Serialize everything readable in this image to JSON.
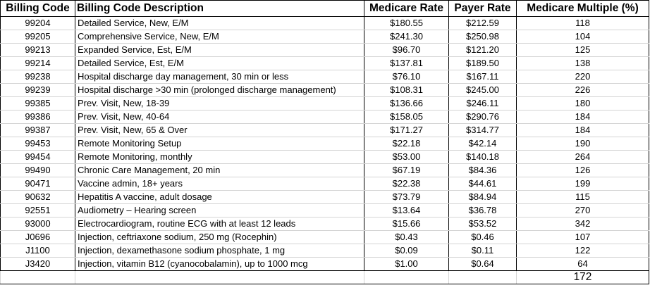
{
  "columns": [
    "Billing Code",
    "Billing Code Description",
    "Medicare Rate",
    "Payer Rate",
    "Medicare Multiple (%)"
  ],
  "rows": [
    {
      "code": "99204",
      "description": "Detailed Service, New, E/M",
      "medicare_rate": "$180.55",
      "payer_rate": "$212.59",
      "multiple": "118"
    },
    {
      "code": "99205",
      "description": "Comprehensive Service, New, E/M",
      "medicare_rate": "$241.30",
      "payer_rate": "$250.98",
      "multiple": "104"
    },
    {
      "code": "99213",
      "description": "Expanded Service, Est, E/M",
      "medicare_rate": "$96.70",
      "payer_rate": "$121.20",
      "multiple": "125"
    },
    {
      "code": "99214",
      "description": "Detailed Service, Est, E/M",
      "medicare_rate": "$137.81",
      "payer_rate": "$189.50",
      "multiple": "138"
    },
    {
      "code": "99238",
      "description": "Hospital discharge day management, 30 min or less",
      "medicare_rate": "$76.10",
      "payer_rate": "$167.11",
      "multiple": "220"
    },
    {
      "code": "99239",
      "description": "Hospital discharge >30 min (prolonged discharge management)",
      "medicare_rate": "$108.31",
      "payer_rate": "$245.00",
      "multiple": "226"
    },
    {
      "code": "99385",
      "description": "Prev. Visit, New, 18-39",
      "medicare_rate": "$136.66",
      "payer_rate": "$246.11",
      "multiple": "180"
    },
    {
      "code": "99386",
      "description": "Prev. Visit, New, 40-64",
      "medicare_rate": "$158.05",
      "payer_rate": "$290.76",
      "multiple": "184"
    },
    {
      "code": "99387",
      "description": "Prev. Visit, New, 65 & Over",
      "medicare_rate": "$171.27",
      "payer_rate": "$314.77",
      "multiple": "184"
    },
    {
      "code": "99453",
      "description": "Remote Monitoring Setup",
      "medicare_rate": "$22.18",
      "payer_rate": "$42.14",
      "multiple": "190"
    },
    {
      "code": "99454",
      "description": "Remote Monitoring, monthly",
      "medicare_rate": "$53.00",
      "payer_rate": "$140.18",
      "multiple": "264"
    },
    {
      "code": "99490",
      "description": "Chronic Care Management, 20 min",
      "medicare_rate": "$67.19",
      "payer_rate": "$84.36",
      "multiple": "126"
    },
    {
      "code": "90471",
      "description": "Vaccine admin, 18+ years",
      "medicare_rate": "$22.38",
      "payer_rate": "$44.61",
      "multiple": "199"
    },
    {
      "code": "90632",
      "description": "Hepatitis A vaccine, adult dosage",
      "medicare_rate": "$73.79",
      "payer_rate": "$84.94",
      "multiple": "115"
    },
    {
      "code": "92551",
      "description": "Audiometry – Hearing screen",
      "medicare_rate": "$13.64",
      "payer_rate": "$36.78",
      "multiple": "270"
    },
    {
      "code": "93000",
      "description": "Electrocardiogram, routine ECG with at least 12 leads",
      "medicare_rate": "$15.66",
      "payer_rate": "$53.52",
      "multiple": "342"
    },
    {
      "code": "J0696",
      "description": "Injection, ceftriaxone sodium, 250 mg (Rocephin)",
      "medicare_rate": "$0.43",
      "payer_rate": "$0.46",
      "multiple": "107"
    },
    {
      "code": "J1100",
      "description": "Injection, dexamethasone sodium phosphate, 1 mg",
      "medicare_rate": "$0.09",
      "payer_rate": "$0.11",
      "multiple": "122"
    },
    {
      "code": "J3420",
      "description": "Injection, vitamin B12 (cyanocobalamin), up to 1000 mcg",
      "medicare_rate": "$1.00",
      "payer_rate": "$0.64",
      "multiple": "64"
    }
  ],
  "total_multiple": "172"
}
